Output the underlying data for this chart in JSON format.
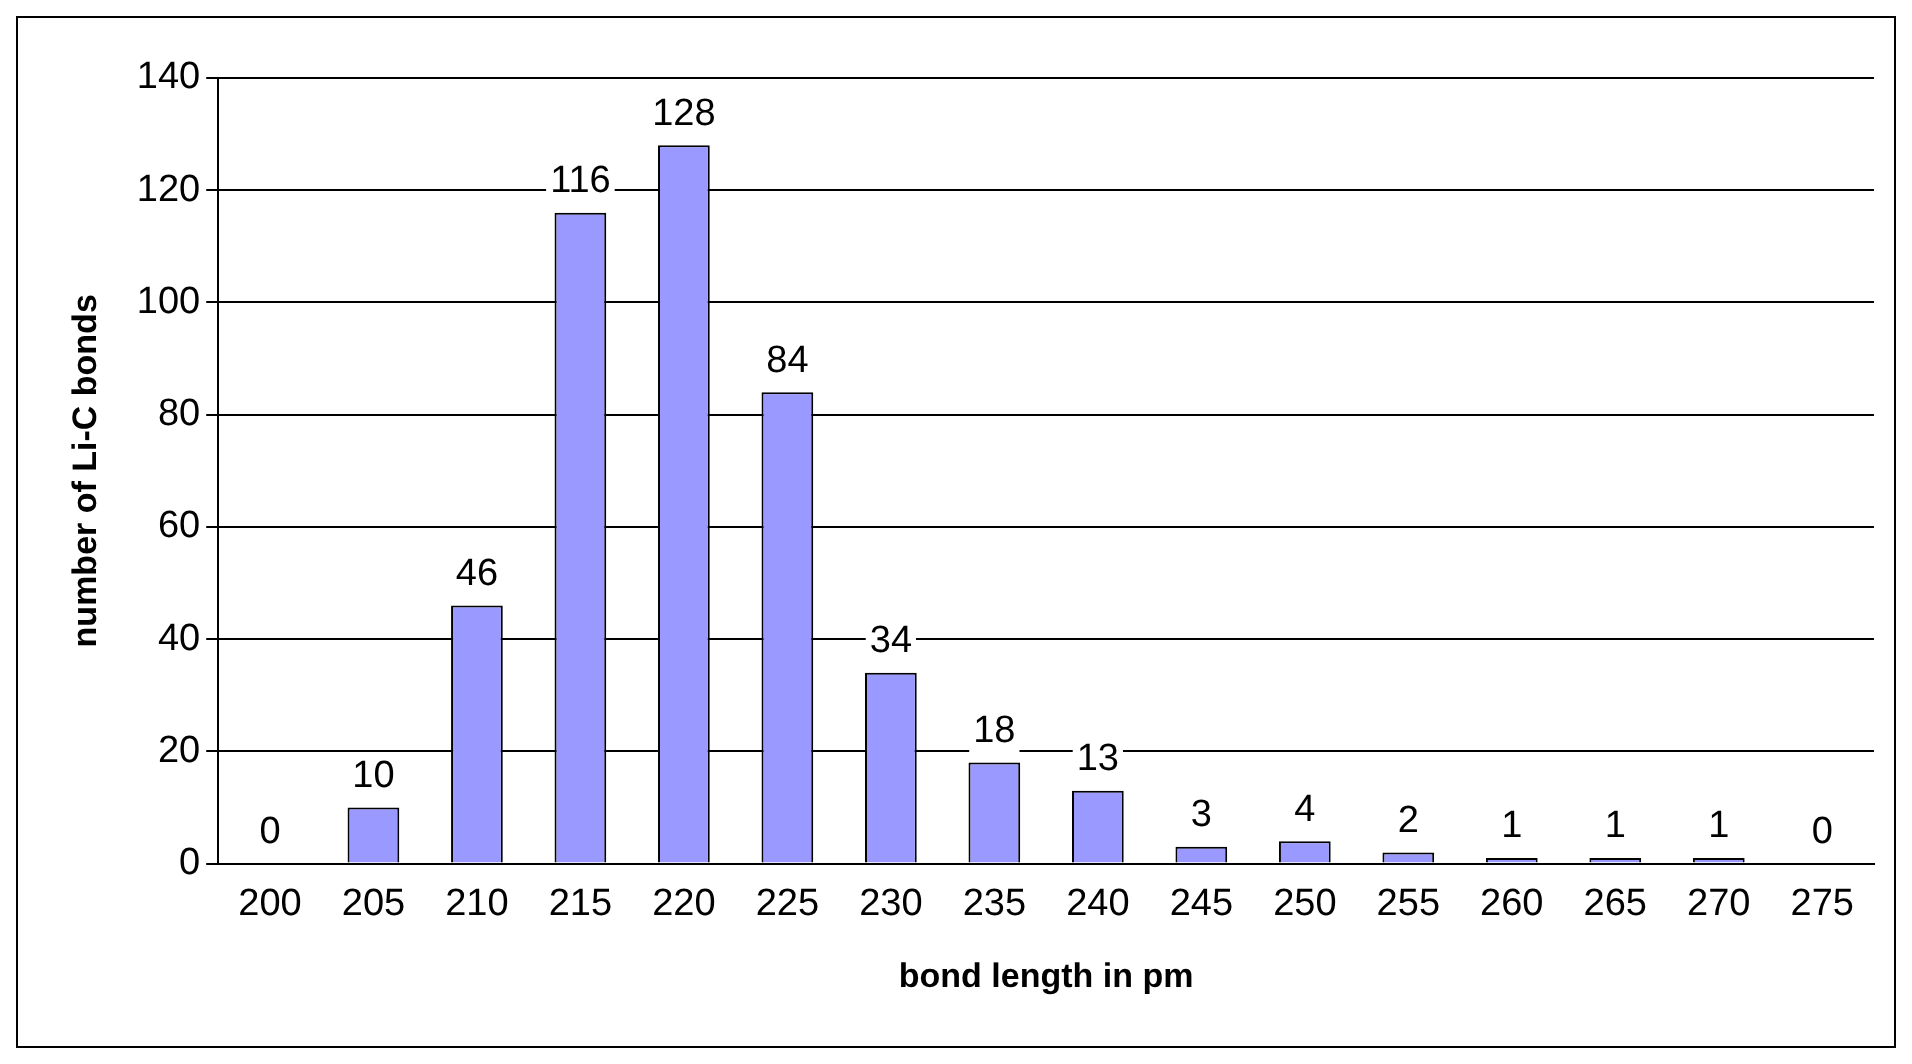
{
  "chart_data": {
    "type": "bar",
    "xlabel": "bond length in pm",
    "ylabel": "number of Li-C bonds",
    "categories": [
      "200",
      "205",
      "210",
      "215",
      "220",
      "225",
      "230",
      "235",
      "240",
      "245",
      "250",
      "255",
      "260",
      "265",
      "270",
      "275"
    ],
    "values": [
      0,
      10,
      46,
      116,
      128,
      84,
      34,
      18,
      13,
      3,
      4,
      2,
      1,
      1,
      1,
      0
    ],
    "color": "#9999ff",
    "ylim": [
      0,
      140
    ],
    "yticks": [
      0,
      20,
      40,
      60,
      80,
      100,
      120,
      140
    ],
    "grid": "y",
    "data_labels": true,
    "legend": false
  }
}
